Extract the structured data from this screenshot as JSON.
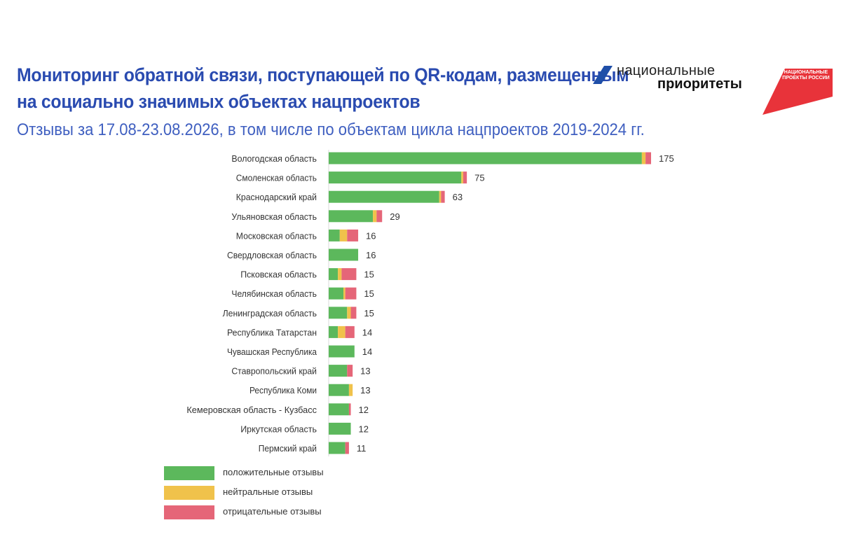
{
  "header": {
    "title_line1": "Мониторинг обратной связи, поступающей по QR-кодам, размещенным",
    "title_line2": "на социально значимых объектах нацпроектов",
    "subtitle": "Отзывы за 17.08-23.08.2026, в  том числе по объектам цикла нацпроектов 2019-2024 гг."
  },
  "logos": {
    "np_line1": "национальные",
    "np_line2": "приоритеты",
    "badge_text": "НАЦИОНАЛЬНЫЕ ПРОЕКТЫ РОССИИ",
    "badge_color": "#e8333a",
    "mark_color": "#1f4fa8"
  },
  "colors": {
    "positive": "#5cb85c",
    "neutral": "#f0c24b",
    "negative": "#e56678",
    "title": "#2a4bb0"
  },
  "legend": {
    "positive": "положительные отзывы",
    "neutral": "нейтральные отзывы",
    "negative": "отрицательные отзывы"
  },
  "chart_data": {
    "type": "bar",
    "orientation": "horizontal",
    "stacked": true,
    "categories": [
      "Вологодская область",
      "Смоленская область",
      "Краснодарский край",
      "Ульяновская область",
      "Московская область",
      "Свердловская область",
      "Псковская область",
      "Челябинская область",
      "Ленинградская область",
      "Республика Татарстан",
      "Чувашская Республика",
      "Ставропольский край",
      "Республика Коми",
      "Кемеровская область - Кузбасс",
      "Иркутская область",
      "Пермский край"
    ],
    "totals": [
      175,
      75,
      63,
      29,
      16,
      16,
      15,
      15,
      15,
      14,
      14,
      13,
      13,
      12,
      12,
      11
    ],
    "series": [
      {
        "name": "положительные отзывы",
        "values": [
          170,
          72,
          60,
          24,
          6,
          16,
          5,
          8,
          10,
          5,
          14,
          10,
          11,
          11,
          12,
          9
        ]
      },
      {
        "name": "нейтральные отзывы",
        "values": [
          2,
          1,
          1,
          2,
          4,
          0,
          2,
          1,
          2,
          4,
          0,
          0,
          2,
          0,
          0,
          0
        ]
      },
      {
        "name": "отрицательные отзывы",
        "values": [
          3,
          2,
          2,
          3,
          6,
          0,
          8,
          6,
          3,
          5,
          0,
          3,
          0,
          1,
          0,
          2
        ]
      }
    ],
    "legend_position": "bottom-left",
    "grid": false,
    "xlim": [
      0,
      175
    ]
  }
}
